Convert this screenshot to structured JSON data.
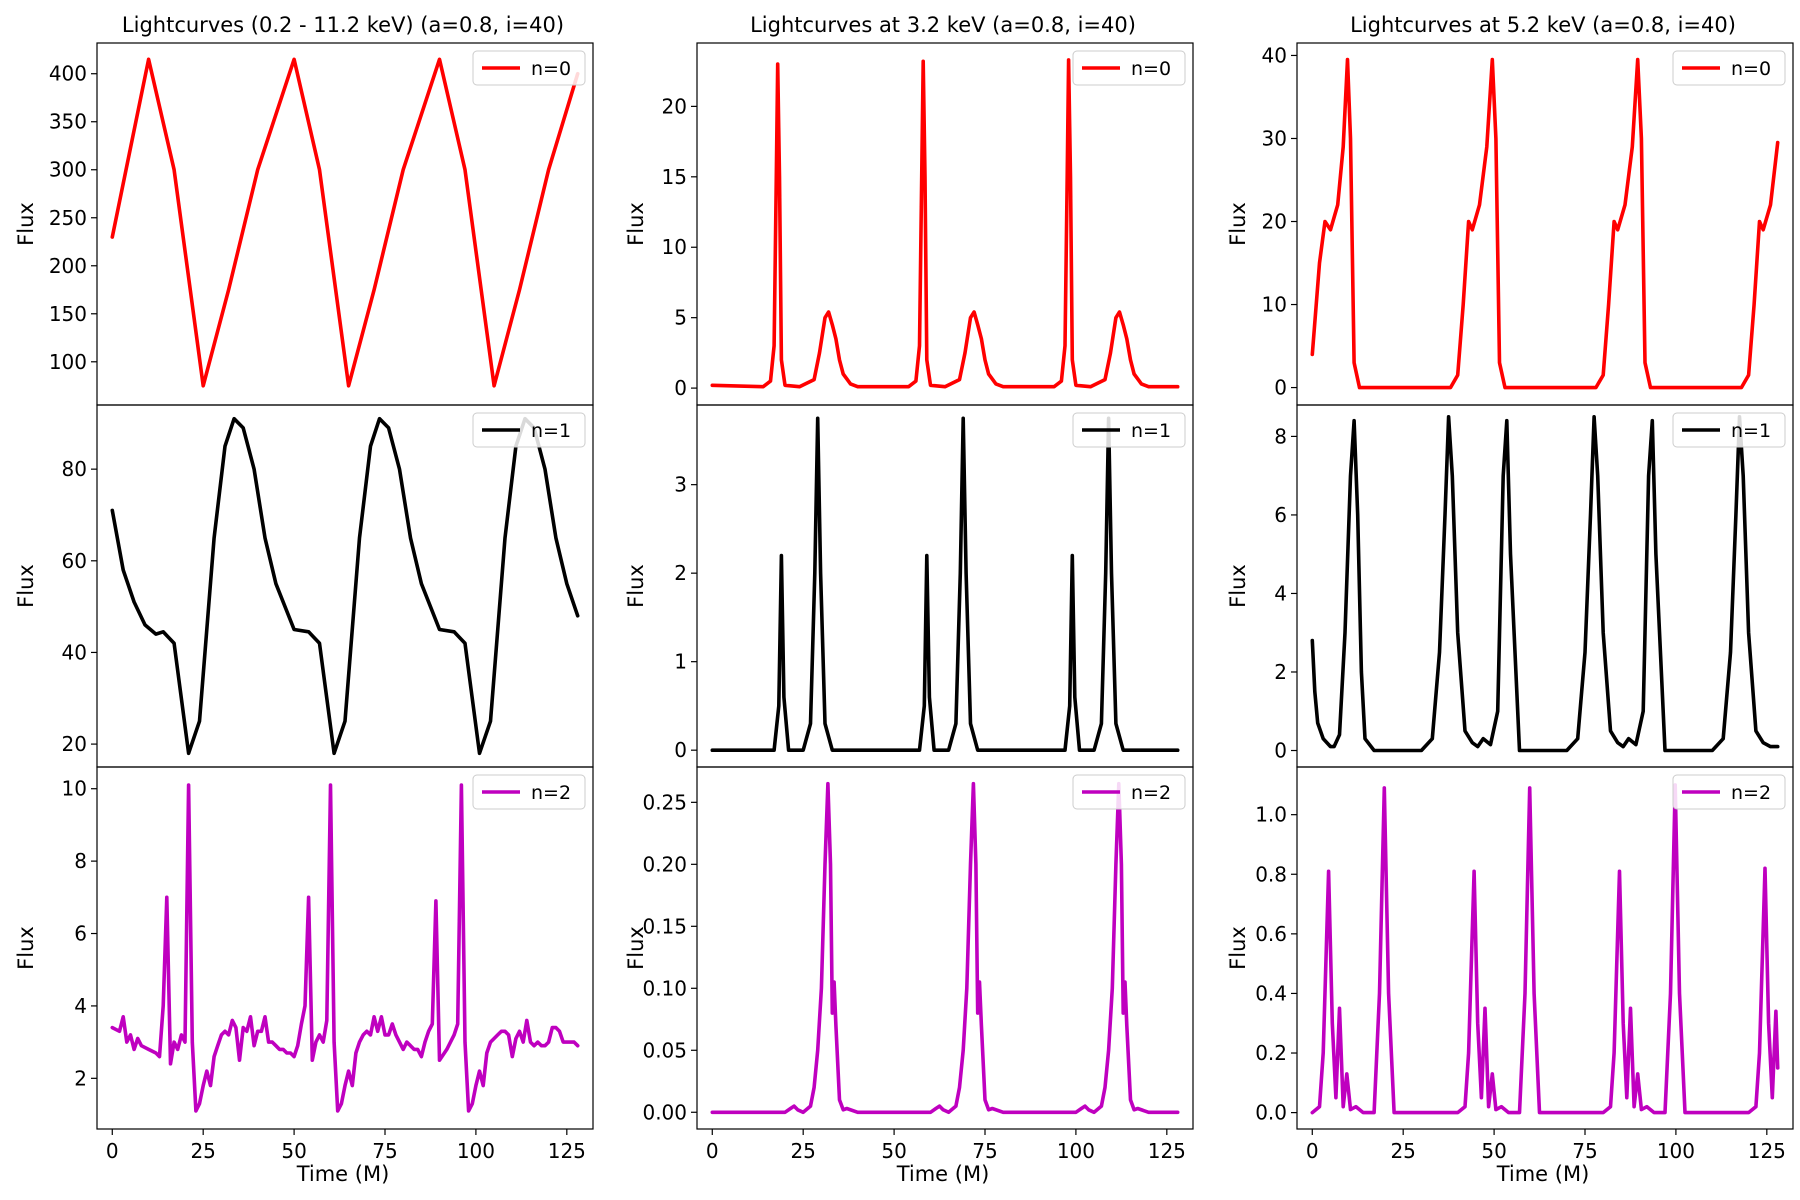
{
  "figure": {
    "xlabel": "Time (M)",
    "ylabel": "Flux"
  },
  "columns": [
    {
      "title": "Lightcurves (0.2 - 11.2 keV) (a=0.8, i=40)"
    },
    {
      "title": "Lightcurves at 3.2 keV (a=0.8, i=40)"
    },
    {
      "title": "Lightcurves at 5.2 keV (a=0.8, i=40)"
    }
  ],
  "colors": {
    "n0": "#ff0000",
    "n1": "#000000",
    "n2": "#bf00bf"
  },
  "chart_data": [
    {
      "type": "line",
      "column": 0,
      "row": 0,
      "title": "Lightcurves (0.2 - 11.2 keV) (a=0.8, i=40)",
      "xlabel": "",
      "ylabel": "Flux",
      "legend": "n=0",
      "legend_position": "top-right",
      "color": "#ff0000",
      "xlim": [
        -4.2,
        132.2
      ],
      "ylim": [
        55,
        432
      ],
      "xticks": [],
      "xtick_labels": [],
      "yticks": [
        100,
        150,
        200,
        250,
        300,
        350,
        400
      ],
      "ytick_labels": [
        "100",
        "150",
        "200",
        "250",
        "300",
        "350",
        "400"
      ],
      "x": [
        0,
        10,
        17,
        25,
        32,
        40,
        50,
        57,
        65,
        72,
        80,
        90,
        97,
        105,
        112,
        120,
        128
      ],
      "y": [
        230,
        415,
        300,
        75,
        175,
        300,
        415,
        300,
        75,
        175,
        300,
        415,
        300,
        75,
        175,
        300,
        400
      ]
    },
    {
      "type": "line",
      "column": 0,
      "row": 1,
      "title": "",
      "xlabel": "",
      "ylabel": "Flux",
      "legend": "n=1",
      "legend_position": "top-right",
      "color": "#000000",
      "xlim": [
        -4.2,
        132.2
      ],
      "ylim": [
        15,
        94
      ],
      "xticks": [],
      "xtick_labels": [],
      "yticks": [
        20,
        40,
        60,
        80
      ],
      "ytick_labels": [
        "20",
        "40",
        "60",
        "80"
      ],
      "x": [
        0,
        3,
        6,
        9,
        12,
        14,
        17,
        21,
        24,
        28,
        31,
        33.5,
        36,
        39,
        42,
        45,
        50,
        54,
        57,
        61,
        64,
        68,
        71,
        73.5,
        76,
        79,
        82,
        85,
        90,
        94,
        97,
        101,
        104,
        108,
        111,
        113.5,
        116,
        119,
        122,
        125,
        128
      ],
      "y": [
        71,
        58,
        51,
        46,
        44,
        44.5,
        42,
        18,
        25,
        65,
        85,
        91,
        89,
        80,
        65,
        55,
        45,
        44.5,
        42,
        18,
        25,
        65,
        85,
        91,
        89,
        80,
        65,
        55,
        45,
        44.5,
        42,
        18,
        25,
        65,
        85,
        91,
        89,
        80,
        65,
        55,
        48
      ]
    },
    {
      "type": "line",
      "column": 0,
      "row": 2,
      "title": "",
      "xlabel": "Time (M)",
      "ylabel": "Flux",
      "legend": "n=2",
      "legend_position": "top-right",
      "color": "#bf00bf",
      "xlim": [
        -4.2,
        132.2
      ],
      "ylim": [
        0.6,
        10.6
      ],
      "xticks": [
        0,
        25,
        50,
        75,
        100,
        125
      ],
      "xtick_labels": [
        "0",
        "25",
        "50",
        "75",
        "100",
        "125"
      ],
      "yticks": [
        2,
        4,
        6,
        8,
        10
      ],
      "ytick_labels": [
        "2",
        "4",
        "6",
        "8",
        "10"
      ],
      "x": [
        0,
        2,
        3,
        4,
        5,
        6,
        7,
        8,
        10,
        12,
        13,
        14,
        15,
        16,
        17,
        18,
        19,
        20,
        21,
        22,
        23,
        24,
        25,
        26,
        27,
        28,
        29,
        30,
        31,
        32,
        33,
        34,
        35,
        36,
        37,
        38,
        39,
        40,
        41,
        42,
        43,
        44,
        45,
        46,
        47,
        48,
        49,
        50,
        51,
        52,
        53,
        54,
        55,
        56,
        57,
        58,
        59,
        60,
        61,
        62,
        63,
        64,
        65,
        66,
        67,
        68,
        69,
        70,
        71,
        72,
        73,
        74,
        75,
        76,
        77,
        78,
        79,
        80,
        81,
        82,
        83,
        84,
        85,
        86,
        87,
        88,
        89,
        90,
        92,
        93,
        94,
        95,
        96,
        97,
        98,
        99,
        100,
        101,
        102,
        103,
        104,
        105,
        106,
        107,
        108,
        109,
        110,
        111,
        112,
        113,
        114,
        115,
        116,
        117,
        118,
        119,
        120,
        121,
        122,
        123,
        124,
        125,
        126,
        127,
        128
      ],
      "y": [
        3.4,
        3.3,
        3.7,
        3.0,
        3.2,
        2.8,
        3.1,
        2.9,
        2.8,
        2.7,
        2.6,
        4.0,
        7.0,
        2.4,
        3.0,
        2.8,
        3.2,
        3.0,
        10.1,
        3.0,
        1.1,
        1.3,
        1.8,
        2.2,
        1.8,
        2.6,
        2.9,
        3.2,
        3.3,
        3.2,
        3.6,
        3.4,
        2.5,
        3.4,
        3.3,
        3.7,
        2.9,
        3.3,
        3.3,
        3.7,
        3.0,
        3.0,
        2.9,
        2.8,
        2.8,
        2.7,
        2.7,
        2.6,
        2.9,
        3.5,
        4.0,
        7.0,
        2.5,
        3.0,
        3.2,
        3.0,
        3.6,
        10.1,
        3.0,
        1.1,
        1.3,
        1.8,
        2.2,
        1.8,
        2.7,
        3.0,
        3.2,
        3.3,
        3.2,
        3.7,
        3.3,
        3.7,
        3.2,
        3.2,
        3.5,
        3.2,
        3.0,
        2.8,
        3.0,
        2.9,
        2.8,
        2.8,
        2.6,
        3.0,
        3.3,
        3.5,
        6.9,
        2.5,
        2.8,
        3.0,
        3.2,
        3.5,
        10.1,
        3.0,
        1.1,
        1.3,
        1.8,
        2.2,
        1.8,
        2.7,
        3.0,
        3.1,
        3.2,
        3.3,
        3.3,
        3.2,
        2.6,
        3.1,
        3.3,
        3.0,
        3.6,
        3.0,
        2.9,
        3.0,
        2.9,
        2.9,
        3.0,
        3.4,
        3.4,
        3.3,
        3.0,
        3.0,
        3.0,
        3.0,
        2.9
      ]
    },
    {
      "type": "line",
      "column": 1,
      "row": 0,
      "title": "Lightcurves at 3.2 keV (a=0.8, i=40)",
      "xlabel": "",
      "ylabel": "Flux",
      "legend": "n=0",
      "legend_position": "top-right",
      "color": "#ff0000",
      "xlim": [
        -4.2,
        132.2
      ],
      "ylim": [
        -1.2,
        24.5
      ],
      "xticks": [],
      "xtick_labels": [],
      "yticks": [
        0,
        5,
        10,
        15,
        20
      ],
      "ytick_labels": [
        "0",
        "5",
        "10",
        "15",
        "20"
      ],
      "x": [
        0,
        14,
        16,
        17,
        17.6,
        18,
        18.5,
        19,
        20,
        24,
        28,
        29.5,
        31,
        32,
        33,
        34,
        35,
        36,
        38,
        40,
        44,
        54,
        56,
        57,
        57.6,
        58,
        58.5,
        59,
        60,
        64,
        68,
        69.5,
        71,
        72,
        73,
        74,
        75,
        76,
        78,
        80,
        84,
        94,
        96,
        97,
        97.6,
        98,
        98.5,
        99,
        100,
        104,
        108,
        109.5,
        111,
        112,
        113,
        114,
        115,
        116,
        118,
        120,
        124,
        128
      ],
      "y": [
        0.2,
        0.1,
        0.5,
        3,
        15,
        23,
        15,
        2,
        0.2,
        0.1,
        0.6,
        2.5,
        5,
        5.4,
        4.5,
        3.5,
        2,
        1,
        0.3,
        0.1,
        0.1,
        0.1,
        0.5,
        3,
        15,
        23.2,
        15,
        2,
        0.2,
        0.1,
        0.6,
        2.5,
        5,
        5.4,
        4.5,
        3.5,
        2,
        1,
        0.3,
        0.1,
        0.1,
        0.1,
        0.5,
        3,
        15,
        23.3,
        15,
        2,
        0.2,
        0.1,
        0.6,
        2.5,
        5,
        5.4,
        4.5,
        3.5,
        2,
        1,
        0.3,
        0.1,
        0.1,
        0.1
      ]
    },
    {
      "type": "line",
      "column": 1,
      "row": 1,
      "title": "",
      "xlabel": "",
      "ylabel": "Flux",
      "legend": "n=1",
      "legend_position": "top-right",
      "color": "#000000",
      "xlim": [
        -4.2,
        132.2
      ],
      "ylim": [
        -0.19,
        3.9
      ],
      "xticks": [],
      "xtick_labels": [],
      "yticks": [
        0,
        1,
        2,
        3
      ],
      "ytick_labels": [
        "0",
        "1",
        "2",
        "3"
      ],
      "x": [
        0,
        17,
        18.3,
        19,
        19.7,
        21,
        25,
        27,
        28.2,
        29,
        29.8,
        31,
        33,
        57,
        58.3,
        59,
        59.7,
        61,
        65,
        67,
        68.2,
        69,
        69.8,
        71,
        73,
        97,
        98.3,
        99,
        99.7,
        101,
        105,
        107,
        108.2,
        109,
        109.8,
        111,
        113,
        128
      ],
      "y": [
        0,
        0,
        0.5,
        2.2,
        0.6,
        0,
        0,
        0.3,
        2.0,
        3.75,
        2.0,
        0.3,
        0,
        0,
        0.5,
        2.2,
        0.6,
        0,
        0,
        0.3,
        2.0,
        3.75,
        2.0,
        0.3,
        0,
        0,
        0.5,
        2.2,
        0.6,
        0,
        0,
        0.3,
        2.0,
        3.75,
        2.0,
        0.3,
        0,
        0
      ]
    },
    {
      "type": "line",
      "column": 1,
      "row": 2,
      "title": "",
      "xlabel": "Time (M)",
      "ylabel": "Flux",
      "legend": "n=2",
      "legend_position": "top-right",
      "color": "#bf00bf",
      "xlim": [
        -4.2,
        132.2
      ],
      "ylim": [
        -0.0135,
        0.2785
      ],
      "xticks": [
        0,
        25,
        50,
        75,
        100,
        125
      ],
      "xtick_labels": [
        "0",
        "25",
        "50",
        "75",
        "100",
        "125"
      ],
      "yticks": [
        0,
        0.05,
        0.1,
        0.15,
        0.2,
        0.25
      ],
      "ytick_labels": [
        "0.00",
        "0.05",
        "0.10",
        "0.15",
        "0.20",
        "0.25"
      ],
      "x": [
        0,
        20,
        21.5,
        22.5,
        23.5,
        25,
        27,
        28,
        29,
        30,
        31,
        31.8,
        32.5,
        33,
        33.5,
        34,
        35,
        36,
        37,
        40,
        60,
        61.5,
        62.5,
        63.5,
        65,
        67,
        68,
        69,
        70,
        71,
        71.8,
        72.5,
        73,
        73.5,
        74,
        75,
        76,
        77,
        80,
        100,
        101.5,
        102.5,
        103.5,
        105,
        107,
        108,
        109,
        110,
        111,
        111.8,
        112.5,
        113,
        113.5,
        114,
        115,
        116,
        117,
        120,
        128
      ],
      "y": [
        0,
        0,
        0.003,
        0.005,
        0.002,
        0,
        0.005,
        0.02,
        0.05,
        0.1,
        0.2,
        0.265,
        0.2,
        0.08,
        0.105,
        0.07,
        0.01,
        0.002,
        0.003,
        0,
        0,
        0.003,
        0.005,
        0.002,
        0,
        0.005,
        0.02,
        0.05,
        0.1,
        0.2,
        0.265,
        0.2,
        0.08,
        0.105,
        0.07,
        0.01,
        0.002,
        0.003,
        0,
        0,
        0.003,
        0.005,
        0.002,
        0,
        0.005,
        0.02,
        0.05,
        0.1,
        0.2,
        0.265,
        0.2,
        0.08,
        0.105,
        0.07,
        0.01,
        0.002,
        0.003,
        0,
        0
      ]
    },
    {
      "type": "line",
      "column": 2,
      "row": 0,
      "title": "Lightcurves at 5.2 keV (a=0.8, i=40)",
      "xlabel": "",
      "ylabel": "Flux",
      "legend": "n=0",
      "legend_position": "top-right",
      "color": "#ff0000",
      "xlim": [
        -4.2,
        132.2
      ],
      "ylim": [
        -2.1,
        41.5
      ],
      "xticks": [],
      "xtick_labels": [],
      "yticks": [
        0,
        10,
        20,
        30,
        40
      ],
      "ytick_labels": [
        "0",
        "10",
        "20",
        "30",
        "40"
      ],
      "x": [
        0,
        2,
        3.5,
        5,
        7,
        8.5,
        9.7,
        10.5,
        11.5,
        13,
        25,
        38,
        40,
        41.5,
        43,
        44,
        46,
        48,
        49.5,
        50.5,
        51.5,
        53,
        65,
        78,
        80,
        81.5,
        83,
        84,
        86,
        88,
        89.5,
        90.5,
        91.5,
        93,
        105,
        118,
        120,
        121.5,
        123,
        124,
        126,
        128
      ],
      "y": [
        4,
        15,
        20,
        19,
        22,
        29,
        39.5,
        30,
        3,
        0,
        0,
        0,
        1.5,
        10,
        20,
        19,
        22,
        29,
        39.5,
        30,
        3,
        0,
        0,
        0,
        1.5,
        10,
        20,
        19,
        22,
        29,
        39.5,
        30,
        3,
        0,
        0,
        0,
        1.5,
        10,
        20,
        19,
        22,
        29.5
      ]
    },
    {
      "type": "line",
      "column": 2,
      "row": 1,
      "title": "",
      "xlabel": "",
      "ylabel": "Flux",
      "legend": "n=1",
      "legend_position": "top-right",
      "color": "#000000",
      "xlim": [
        -4.2,
        132.2
      ],
      "ylim": [
        -0.42,
        8.8
      ],
      "xticks": [],
      "xtick_labels": [],
      "yticks": [
        0,
        2,
        4,
        6,
        8
      ],
      "ytick_labels": [
        "0",
        "2",
        "4",
        "6",
        "8"
      ],
      "x": [
        0,
        0.7,
        1.5,
        3,
        5,
        6,
        7.5,
        9,
        10.5,
        11.5,
        12.5,
        13.5,
        14.5,
        17,
        25,
        30,
        33,
        35,
        36.5,
        37.5,
        38.5,
        40,
        42,
        44,
        45.5,
        47,
        49,
        51,
        52.5,
        53.5,
        54.5,
        57,
        65,
        70,
        73,
        75,
        76.5,
        77.5,
        78.5,
        80,
        82,
        84,
        85.5,
        87,
        89,
        91,
        92.5,
        93.5,
        94.5,
        97,
        105,
        110,
        113,
        115,
        116.5,
        117.5,
        118.5,
        120,
        122,
        124,
        126,
        128
      ],
      "y": [
        2.8,
        1.5,
        0.7,
        0.3,
        0.1,
        0.1,
        0.4,
        3,
        7,
        8.4,
        6,
        2,
        0.3,
        0,
        0,
        0,
        0.3,
        2.5,
        6,
        8.5,
        7,
        3,
        0.5,
        0.2,
        0.1,
        0.3,
        0.15,
        1,
        7,
        8.4,
        5,
        0,
        0,
        0,
        0.3,
        2.5,
        6,
        8.5,
        7,
        3,
        0.5,
        0.2,
        0.1,
        0.3,
        0.15,
        1,
        7,
        8.4,
        5,
        0,
        0,
        0,
        0.3,
        2.5,
        6,
        8.5,
        7,
        3,
        0.5,
        0.2,
        0.1,
        0.1
      ]
    },
    {
      "type": "line",
      "column": 2,
      "row": 2,
      "title": "",
      "xlabel": "Time (M)",
      "ylabel": "Flux",
      "legend": "n=2",
      "legend_position": "top-right",
      "color": "#bf00bf",
      "xlim": [
        -4.2,
        132.2
      ],
      "ylim": [
        -0.055,
        1.16
      ],
      "xticks": [
        0,
        25,
        50,
        75,
        100,
        125
      ],
      "xtick_labels": [
        "0",
        "25",
        "50",
        "75",
        "100",
        "125"
      ],
      "yticks": [
        0,
        0.2,
        0.4,
        0.6,
        0.8,
        1.0
      ],
      "ytick_labels": [
        "0.0",
        "0.2",
        "0.4",
        "0.6",
        "0.8",
        "1.0"
      ],
      "x": [
        0,
        2,
        3,
        4.5,
        5.5,
        6.5,
        7.5,
        8.5,
        9.5,
        10.5,
        12,
        14,
        17,
        18.5,
        19.8,
        21,
        22.5,
        25,
        40,
        42,
        43,
        44.5,
        45.5,
        46.5,
        47.5,
        48.5,
        49.5,
        50.5,
        52,
        54,
        57,
        58.5,
        59.8,
        61,
        62.5,
        65,
        80,
        82,
        83,
        84.5,
        85.5,
        86.5,
        87.5,
        88.5,
        89.5,
        90.5,
        92,
        94,
        97,
        98.5,
        99.8,
        101,
        102.5,
        105,
        120,
        122,
        123,
        124.5,
        125.5,
        126.5,
        127.5,
        128
      ],
      "y": [
        0,
        0.02,
        0.2,
        0.81,
        0.3,
        0.05,
        0.35,
        0.02,
        0.13,
        0.01,
        0.02,
        0,
        0,
        0.4,
        1.09,
        0.4,
        0,
        0,
        0,
        0.02,
        0.2,
        0.81,
        0.3,
        0.05,
        0.35,
        0.02,
        0.13,
        0.01,
        0.02,
        0,
        0,
        0.4,
        1.09,
        0.4,
        0,
        0,
        0,
        0.02,
        0.2,
        0.81,
        0.3,
        0.05,
        0.35,
        0.02,
        0.13,
        0.01,
        0.02,
        0,
        0,
        0.4,
        1.1,
        0.4,
        0,
        0,
        0,
        0.02,
        0.2,
        0.82,
        0.3,
        0.05,
        0.34,
        0.15
      ]
    }
  ]
}
